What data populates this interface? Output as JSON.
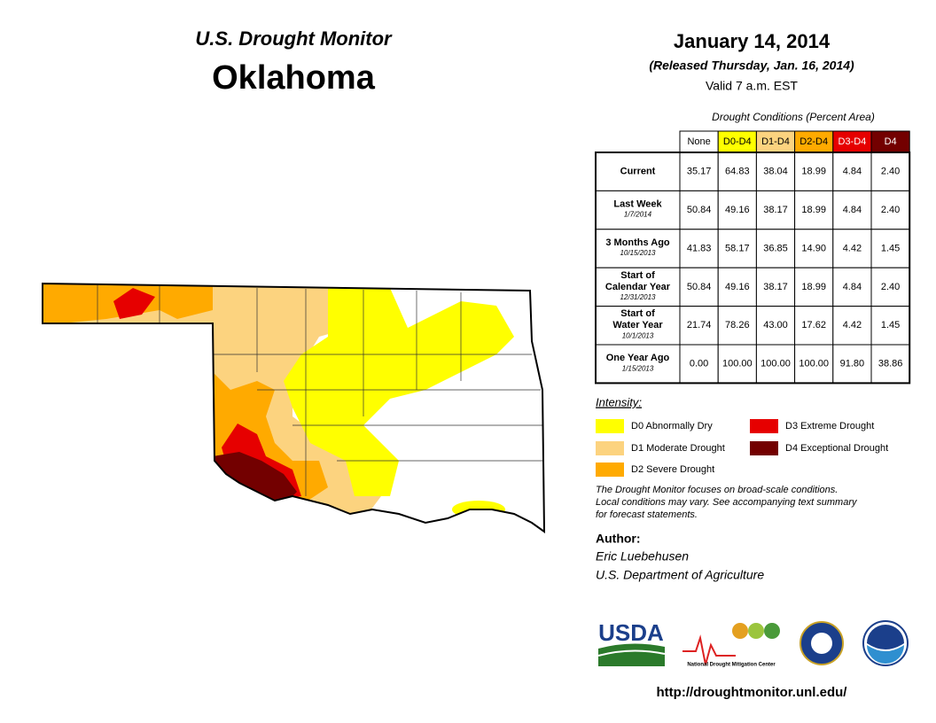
{
  "header": {
    "subtitle": "U.S. Drought Monitor",
    "title": "Oklahoma",
    "date": "January 14, 2014",
    "released": "(Released Thursday, Jan. 16, 2014)",
    "valid": "Valid 7 a.m. EST"
  },
  "table": {
    "caption": "Drought Conditions (Percent Area)",
    "columns": [
      {
        "label": "None",
        "color": "#ffffff"
      },
      {
        "label": "D0-D4",
        "color": "#ffff00"
      },
      {
        "label": "D1-D4",
        "color": "#fcd37f"
      },
      {
        "label": "D2-D4",
        "color": "#ffaa00"
      },
      {
        "label": "D3-D4",
        "color": "#e60000"
      },
      {
        "label": "D4",
        "color": "#730000"
      }
    ],
    "rows": [
      {
        "label": [
          "Current"
        ],
        "values": [
          "35.17",
          "64.83",
          "38.04",
          "18.99",
          "4.84",
          "2.40"
        ]
      },
      {
        "label": [
          "Last Week"
        ],
        "date": "1/7/2014",
        "values": [
          "50.84",
          "49.16",
          "38.17",
          "18.99",
          "4.84",
          "2.40"
        ]
      },
      {
        "label": [
          "3 Months Ago"
        ],
        "date": "10/15/2013",
        "values": [
          "41.83",
          "58.17",
          "36.85",
          "14.90",
          "4.42",
          "1.45"
        ]
      },
      {
        "label": [
          "Start of",
          "Calendar Year"
        ],
        "date": "12/31/2013",
        "values": [
          "50.84",
          "49.16",
          "38.17",
          "18.99",
          "4.84",
          "2.40"
        ]
      },
      {
        "label": [
          "Start of",
          "Water Year"
        ],
        "date": "10/1/2013",
        "values": [
          "21.74",
          "78.26",
          "43.00",
          "17.62",
          "4.42",
          "1.45"
        ]
      },
      {
        "label": [
          "One Year Ago"
        ],
        "date": "1/15/2013",
        "values": [
          "0.00",
          "100.00",
          "100.00",
          "100.00",
          "91.80",
          "38.86"
        ]
      }
    ]
  },
  "legend": {
    "title": "Intensity:",
    "items": [
      {
        "label": "D0 Abnormally Dry",
        "color": "#ffff00"
      },
      {
        "label": "D1 Moderate Drought",
        "color": "#fcd37f"
      },
      {
        "label": "D2 Severe Drought",
        "color": "#ffaa00"
      },
      {
        "label": "D3 Extreme Drought",
        "color": "#e60000"
      },
      {
        "label": "D4 Exceptional Drought",
        "color": "#730000"
      }
    ]
  },
  "note": [
    "The Drought Monitor focuses on broad-scale conditions.",
    "Local conditions may vary. See accompanying text summary",
    "for forecast statements."
  ],
  "author": {
    "heading": "Author:",
    "name": "Eric Luebehusen",
    "agency": "U.S. Department of Agriculture"
  },
  "logos": {
    "usda": "USDA",
    "ndmc": "National Drought Mitigation Center"
  },
  "url": "http://droughtmonitor.unl.edu/"
}
